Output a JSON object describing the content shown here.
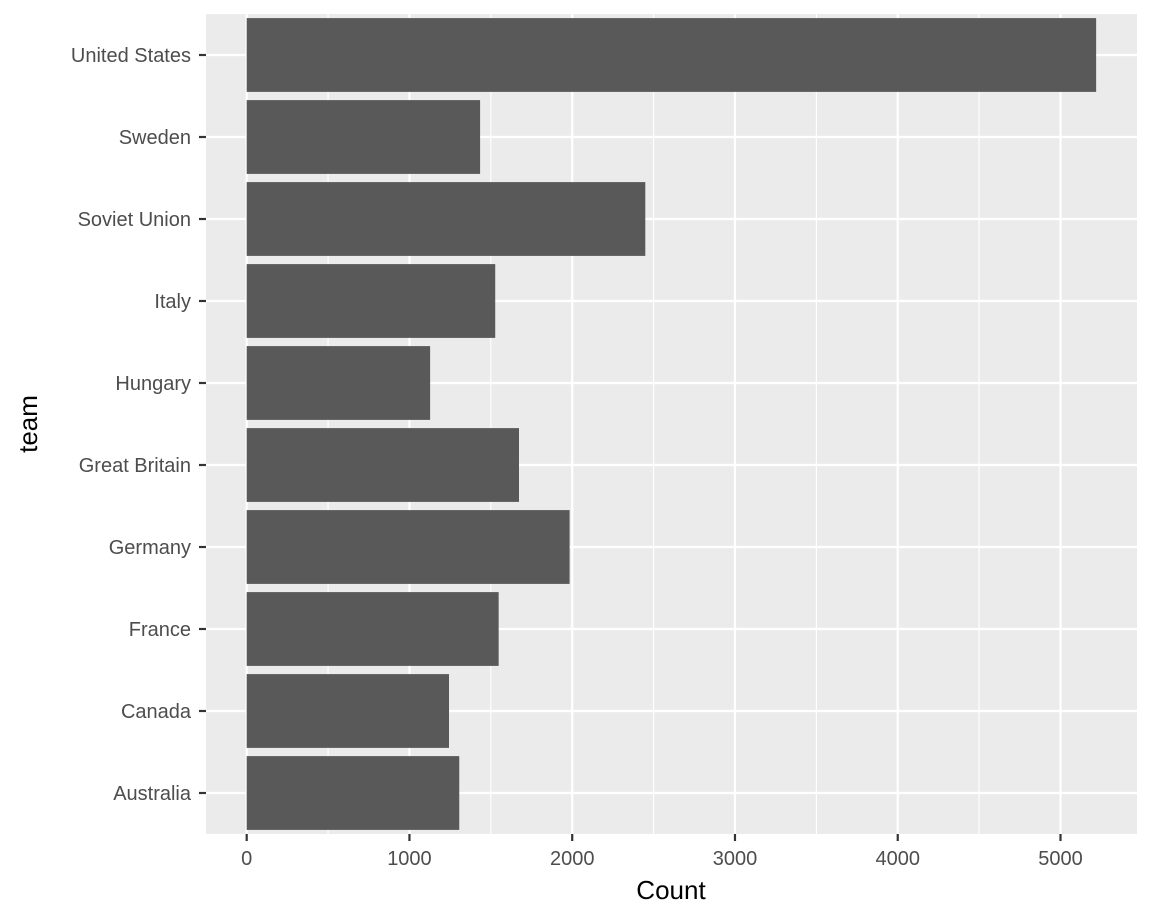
{
  "chart_data": {
    "type": "bar",
    "orientation": "horizontal",
    "categories": [
      "United States",
      "Sweden",
      "Soviet Union",
      "Italy",
      "Hungary",
      "Great Britain",
      "Germany",
      "France",
      "Canada",
      "Australia"
    ],
    "values": [
      5219,
      1434,
      2449,
      1527,
      1127,
      1673,
      1984,
      1548,
      1243,
      1306
    ],
    "xlabel": "Count",
    "ylabel": "team",
    "xlim": [
      -250,
      5470
    ],
    "xticks": [
      0,
      1000,
      2000,
      3000,
      4000,
      5000
    ],
    "xtick_labels": [
      "0",
      "1000",
      "2000",
      "3000",
      "4000",
      "5000"
    ],
    "grid": true,
    "colors": {
      "bar": "#595959",
      "panel": "#ebebeb",
      "grid": "#ffffff"
    }
  }
}
